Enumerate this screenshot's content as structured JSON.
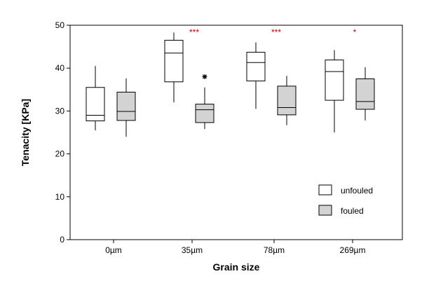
{
  "chart_data": {
    "type": "box",
    "xlabel": "Grain size",
    "ylabel": "Tenacity [KPa]",
    "ylim": [
      0,
      50
    ],
    "yticks": [
      0,
      10,
      20,
      30,
      40,
      50
    ],
    "categories": [
      "0µm",
      "35µm",
      "78µm",
      "269µm"
    ],
    "grid": false,
    "legend_position": "bottom-right",
    "series": [
      {
        "name": "unfouled",
        "color": "#ffffff",
        "boxes": [
          {
            "min": 25.5,
            "q1": 27.7,
            "median": 29.0,
            "q3": 35.5,
            "max": 40.5
          },
          {
            "min": 32.0,
            "q1": 36.8,
            "median": 43.5,
            "q3": 46.5,
            "max": 48.3
          },
          {
            "min": 30.5,
            "q1": 37.0,
            "median": 41.3,
            "q3": 43.7,
            "max": 46.0
          },
          {
            "min": 25.0,
            "q1": 32.5,
            "median": 39.2,
            "q3": 41.9,
            "max": 44.2
          }
        ]
      },
      {
        "name": "fouled",
        "color": "#d3d3d3",
        "boxes": [
          {
            "min": 24.0,
            "q1": 27.8,
            "median": 29.9,
            "q3": 34.4,
            "max": 37.6
          },
          {
            "min": 25.8,
            "q1": 27.3,
            "median": 30.3,
            "q3": 31.6,
            "max": 35.5,
            "outliers": [
              38.0
            ]
          },
          {
            "min": 26.7,
            "q1": 29.1,
            "median": 30.8,
            "q3": 35.8,
            "max": 38.2
          },
          {
            "min": 27.8,
            "q1": 30.4,
            "median": 32.2,
            "q3": 37.5,
            "max": 40.2
          }
        ]
      }
    ],
    "annotations": [
      "",
      "***",
      "***",
      "*"
    ],
    "annotation_color": "#c00000"
  }
}
